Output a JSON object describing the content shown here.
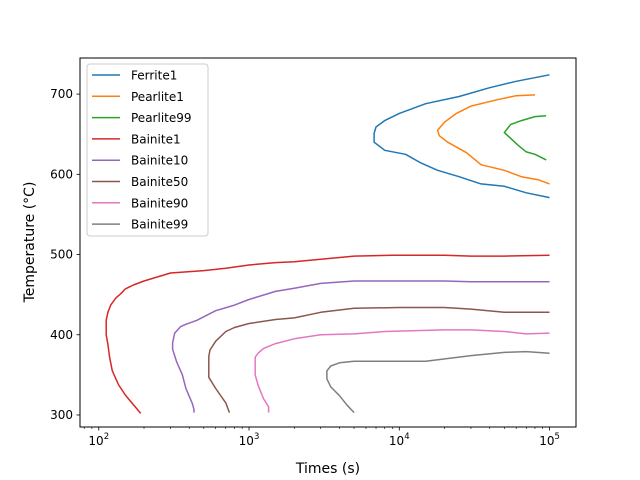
{
  "chart_data": {
    "type": "line",
    "title": "",
    "xlabel": "Times (s)",
    "ylabel": "Temperature (°C)",
    "xscale": "log",
    "xlim": [
      75,
      150000
    ],
    "ylim": [
      285,
      745
    ],
    "x_ticks": [
      100,
      1000,
      10000,
      100000
    ],
    "x_tick_labels": [
      {
        "base": "10",
        "exp": "2"
      },
      {
        "base": "10",
        "exp": "3"
      },
      {
        "base": "10",
        "exp": "4"
      },
      {
        "base": "10",
        "exp": "5"
      }
    ],
    "y_ticks": [
      300,
      400,
      500,
      600,
      700
    ],
    "y_tick_labels": [
      "300",
      "400",
      "500",
      "600",
      "700"
    ],
    "grid": false,
    "legend_position": "upper left",
    "series": [
      {
        "name": "Ferrite1",
        "color": "#1f77b4",
        "points": [
          [
            100000,
            724
          ],
          [
            60000,
            716
          ],
          [
            40000,
            708
          ],
          [
            25000,
            697
          ],
          [
            15000,
            688
          ],
          [
            10000,
            676
          ],
          [
            8000,
            667
          ],
          [
            7000,
            659
          ],
          [
            6800,
            651
          ],
          [
            6800,
            640
          ],
          [
            8000,
            630
          ],
          [
            11000,
            625
          ],
          [
            14000,
            614
          ],
          [
            18000,
            605
          ],
          [
            25000,
            597
          ],
          [
            35000,
            588
          ],
          [
            50000,
            585
          ],
          [
            70000,
            577
          ],
          [
            100000,
            571
          ]
        ]
      },
      {
        "name": "Pearlite1",
        "color": "#ff7f0e",
        "points": [
          [
            80000,
            699
          ],
          [
            60000,
            698
          ],
          [
            45000,
            693
          ],
          [
            30000,
            685
          ],
          [
            24000,
            676
          ],
          [
            20000,
            665
          ],
          [
            18000,
            655
          ],
          [
            18500,
            648
          ],
          [
            21000,
            640
          ],
          [
            28000,
            627
          ],
          [
            35000,
            612
          ],
          [
            50000,
            605
          ],
          [
            65000,
            597
          ],
          [
            85000,
            593
          ],
          [
            100000,
            588
          ]
        ]
      },
      {
        "name": "Pearlite99",
        "color": "#2ca02c",
        "points": [
          [
            95000,
            673
          ],
          [
            80000,
            672
          ],
          [
            65000,
            667
          ],
          [
            55000,
            662
          ],
          [
            50000,
            652
          ],
          [
            55000,
            645
          ],
          [
            62000,
            636
          ],
          [
            70000,
            628
          ],
          [
            80000,
            625
          ],
          [
            95000,
            618
          ]
        ]
      },
      {
        "name": "Bainite1",
        "color": "#d62728",
        "points": [
          [
            100000,
            499
          ],
          [
            50000,
            498
          ],
          [
            30000,
            498
          ],
          [
            20000,
            499
          ],
          [
            9000,
            499
          ],
          [
            5000,
            498
          ],
          [
            3000,
            494
          ],
          [
            2000,
            491
          ],
          [
            1500,
            490
          ],
          [
            1000,
            487
          ],
          [
            700,
            483
          ],
          [
            500,
            480
          ],
          [
            300,
            477
          ],
          [
            200,
            467
          ],
          [
            170,
            462
          ],
          [
            150,
            457
          ],
          [
            140,
            451
          ],
          [
            130,
            446
          ],
          [
            120,
            437
          ],
          [
            115,
            428
          ],
          [
            112,
            418
          ],
          [
            112,
            400
          ],
          [
            115,
            388
          ],
          [
            118,
            372
          ],
          [
            123,
            355
          ],
          [
            135,
            338
          ],
          [
            150,
            325
          ],
          [
            190,
            302
          ]
        ]
      },
      {
        "name": "Bainite10",
        "color": "#9467bd",
        "points": [
          [
            100000,
            466
          ],
          [
            30000,
            466
          ],
          [
            20000,
            467
          ],
          [
            10000,
            467
          ],
          [
            5000,
            467
          ],
          [
            3000,
            464
          ],
          [
            2000,
            458
          ],
          [
            1500,
            454
          ],
          [
            1000,
            444
          ],
          [
            800,
            437
          ],
          [
            600,
            430
          ],
          [
            450,
            418
          ],
          [
            380,
            413
          ],
          [
            350,
            410
          ],
          [
            320,
            402
          ],
          [
            310,
            390
          ],
          [
            310,
            382
          ],
          [
            330,
            366
          ],
          [
            360,
            350
          ],
          [
            380,
            333
          ],
          [
            420,
            314
          ],
          [
            430,
            307
          ],
          [
            430,
            303
          ]
        ]
      },
      {
        "name": "Bainite50",
        "color": "#8c564b",
        "points": [
          [
            100000,
            428
          ],
          [
            50000,
            428
          ],
          [
            30000,
            432
          ],
          [
            20000,
            434
          ],
          [
            10000,
            434
          ],
          [
            5000,
            433
          ],
          [
            3000,
            428
          ],
          [
            2000,
            421
          ],
          [
            1500,
            419
          ],
          [
            1000,
            414
          ],
          [
            800,
            409
          ],
          [
            700,
            404
          ],
          [
            600,
            392
          ],
          [
            550,
            381
          ],
          [
            540,
            373
          ],
          [
            540,
            347
          ],
          [
            600,
            333
          ],
          [
            700,
            315
          ],
          [
            740,
            303
          ]
        ]
      },
      {
        "name": "Bainite90",
        "color": "#e377c2",
        "points": [
          [
            100000,
            402
          ],
          [
            70000,
            401
          ],
          [
            50000,
            404
          ],
          [
            30000,
            406
          ],
          [
            20000,
            406
          ],
          [
            12000,
            405
          ],
          [
            8000,
            404
          ],
          [
            5000,
            401
          ],
          [
            3000,
            400
          ],
          [
            2000,
            395
          ],
          [
            1500,
            389
          ],
          [
            1250,
            383
          ],
          [
            1150,
            377
          ],
          [
            1100,
            372
          ],
          [
            1100,
            350
          ],
          [
            1150,
            337
          ],
          [
            1250,
            320
          ],
          [
            1350,
            310
          ],
          [
            1350,
            303
          ]
        ]
      },
      {
        "name": "Bainite99",
        "color": "#7f7f7f",
        "points": [
          [
            100000,
            377
          ],
          [
            70000,
            379
          ],
          [
            50000,
            378
          ],
          [
            30000,
            374
          ],
          [
            15000,
            367
          ],
          [
            8000,
            367
          ],
          [
            5000,
            367
          ],
          [
            4000,
            365
          ],
          [
            3500,
            361
          ],
          [
            3300,
            355
          ],
          [
            3300,
            345
          ],
          [
            3500,
            335
          ],
          [
            4000,
            324
          ],
          [
            4500,
            312
          ],
          [
            5000,
            303
          ]
        ]
      }
    ]
  }
}
